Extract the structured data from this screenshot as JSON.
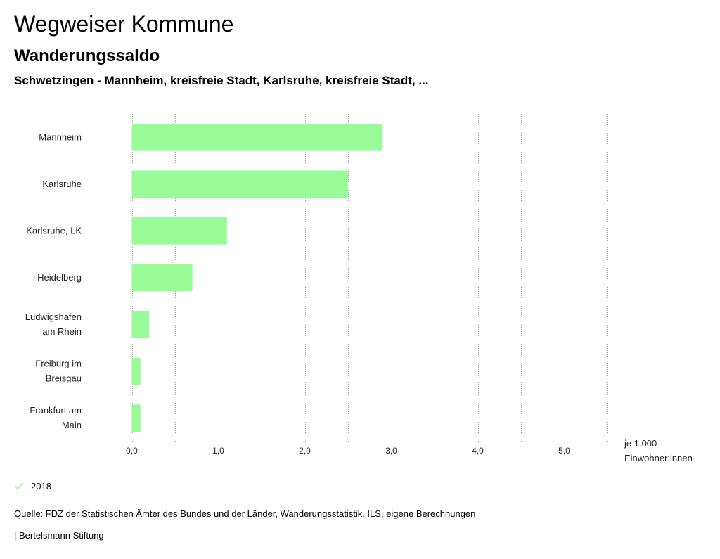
{
  "header": {
    "title": "Wegweiser Kommune",
    "subtitle": "Wanderungssaldo",
    "selection": "Schwetzingen - Mannheim, kreisfreie Stadt, Karlsruhe, kreisfreie Stadt, ..."
  },
  "chart_data": {
    "type": "bar",
    "orientation": "horizontal",
    "categories": [
      [
        "Mannheim"
      ],
      [
        "Karlsruhe"
      ],
      [
        "Karlsruhe, LK"
      ],
      [
        "Heidelberg"
      ],
      [
        "Ludwigshafen",
        "am Rhein"
      ],
      [
        "Freiburg im",
        "Breisgau"
      ],
      [
        "Frankfurt am",
        "Main"
      ]
    ],
    "series": [
      {
        "name": "2018",
        "values": [
          2.9,
          2.5,
          1.1,
          0.7,
          0.2,
          0.1,
          0.1
        ]
      }
    ],
    "xlim": [
      -0.5,
      5.5
    ],
    "xticks": [
      0,
      1,
      2,
      3,
      4,
      5
    ],
    "xtick_labels": [
      "0,0",
      "1,0",
      "2,0",
      "3,0",
      "4,0",
      "5,0"
    ],
    "unit_label": [
      "je 1.000",
      "Einwohner:innen"
    ],
    "grid": "vertical dotted",
    "bar_color": "#98fb98"
  },
  "legend": {
    "label": "2018",
    "color": "#98fb98"
  },
  "footer": {
    "source": "Quelle: FDZ der Statistischen Ämter des Bundes und der Länder, Wanderungsstatistik, ILS, eigene Berechnungen",
    "copyright": "| Bertelsmann Stiftung"
  }
}
